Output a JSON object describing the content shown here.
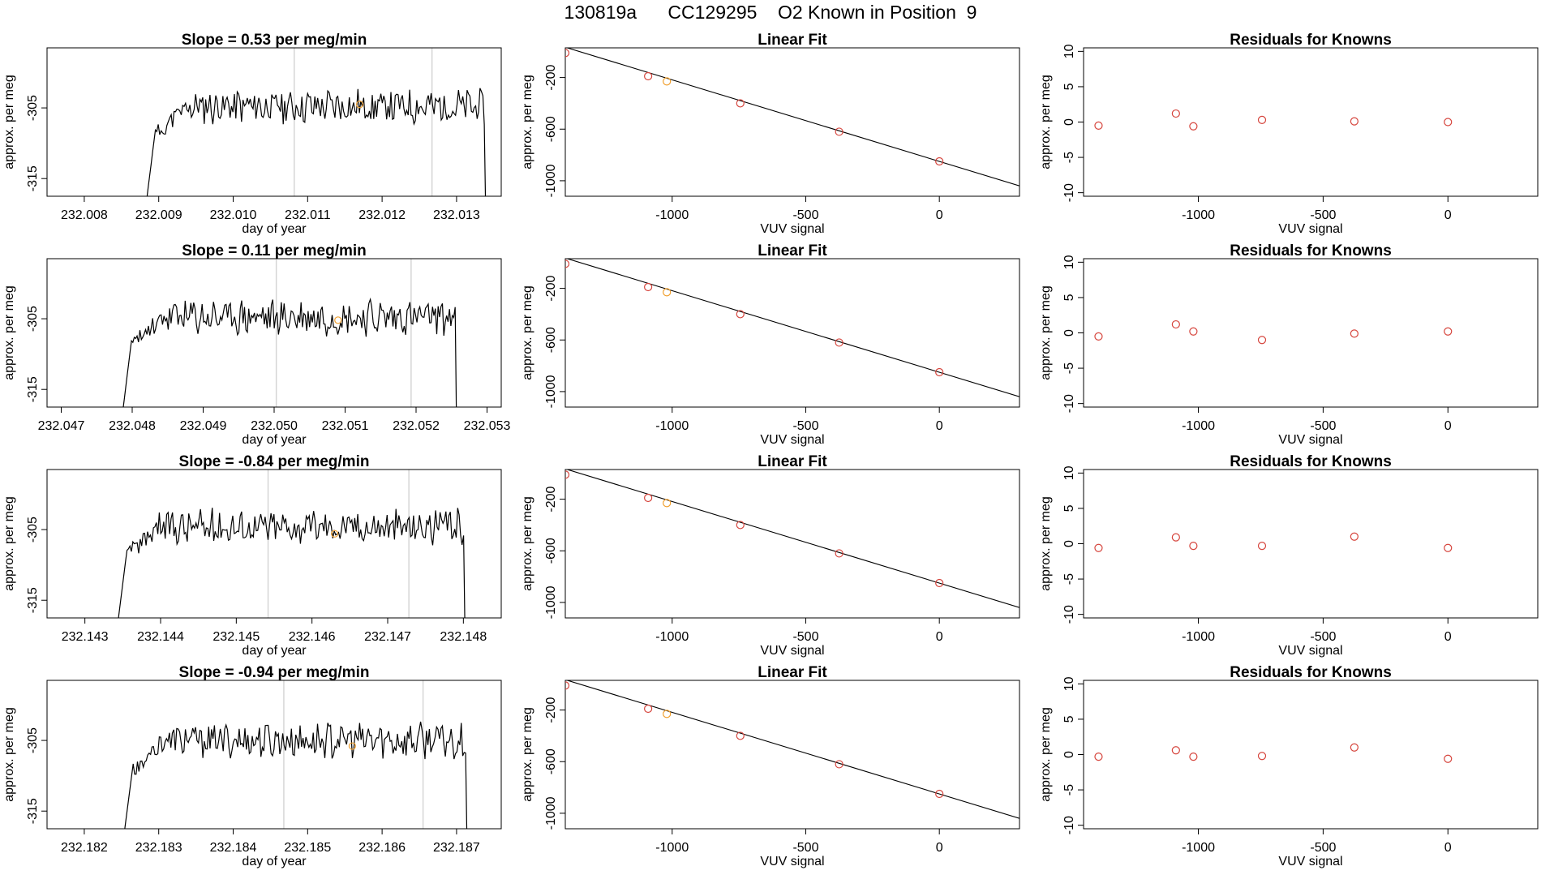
{
  "title": "130819a      CC129295    O2 Known in Position  9",
  "colors": {
    "frame": "#000000",
    "line": "#000000",
    "vline": "#d3d3d3",
    "point": "#d6453d",
    "highlight": "#f0a030"
  },
  "chart_data": [
    {
      "type": "line",
      "title": "Slope =  0.53  per meg/min",
      "xlabel": "day of year",
      "ylabel": "approx. per meg",
      "xlim": [
        232.0075,
        232.0136
      ],
      "ylim": [
        -317.5,
        -296.5
      ],
      "xticks": [
        232.008,
        232.009,
        232.01,
        232.011,
        232.012,
        232.013
      ],
      "xtick_labels": [
        "232.008",
        "232.009",
        "232.010",
        "232.011",
        "232.012",
        "232.013"
      ],
      "yticks": [
        -305,
        -315
      ],
      "ytick_labels": [
        "-305",
        "-315"
      ],
      "vlines": [
        232.01082,
        232.01267
      ],
      "start": 232.00882,
      "end": 232.01345,
      "level": -304.8,
      "amplitude": 2.2,
      "highlight_point": {
        "x": 232.0117,
        "y": -304.5
      },
      "seed": 11
    },
    {
      "type": "scatter",
      "title": "Linear Fit",
      "xlabel": "VUV signal",
      "ylabel": "approx. per meg",
      "xlim": [
        -1400,
        300
      ],
      "ylim": [
        -1120,
        30
      ],
      "xticks": [
        -1000,
        -500,
        0
      ],
      "xtick_labels": [
        "-1000",
        "-500",
        "0"
      ],
      "yticks": [
        -200,
        -600,
        -1000
      ],
      "ytick_labels": [
        "-200",
        "-600",
        "-1000"
      ],
      "x": [
        -1400,
        -1090,
        -1020,
        -745,
        -375,
        0
      ],
      "y": [
        -10,
        -190,
        -230,
        -400,
        -620,
        -850
      ],
      "highlight_index": 2,
      "fit": {
        "slope": 0.632,
        "intercept": -850
      }
    },
    {
      "type": "scatter",
      "title": "Residuals for Knowns",
      "xlabel": "VUV signal",
      "ylabel": "approx. per meg",
      "xlim": [
        -1460,
        360
      ],
      "ylim": [
        -10.5,
        10.5
      ],
      "xticks": [
        -1000,
        -500,
        0
      ],
      "xtick_labels": [
        "-1000",
        "-500",
        "0"
      ],
      "yticks": [
        10,
        5,
        0,
        -5,
        -10
      ],
      "ytick_labels": [
        "10",
        "5",
        "0",
        "-5",
        "-10"
      ],
      "x": [
        -1400,
        -1090,
        -1020,
        -745,
        -375,
        0
      ],
      "y": [
        -0.5,
        1.2,
        -0.6,
        0.3,
        0.1,
        0.0
      ]
    },
    {
      "type": "line",
      "title": "Slope =  0.11  per meg/min",
      "xlabel": "day of year",
      "ylabel": "approx. per meg",
      "xlim": [
        232.0468,
        232.0532
      ],
      "ylim": [
        -317.5,
        -296.5
      ],
      "xticks": [
        232.047,
        232.048,
        232.049,
        232.05,
        232.051,
        232.052,
        232.053
      ],
      "xtick_labels": [
        "232.047",
        "232.048",
        "232.049",
        "232.050",
        "232.051",
        "232.052",
        "232.053"
      ],
      "yticks": [
        -305,
        -315
      ],
      "ytick_labels": [
        "-305",
        "-315"
      ],
      "vlines": [
        232.05003,
        232.05193
      ],
      "start": 232.04785,
      "end": 232.05263,
      "level": -304.8,
      "amplitude": 2.2,
      "highlight_point": {
        "x": 232.0509,
        "y": -305.2
      },
      "seed": 23
    },
    {
      "type": "scatter",
      "title": "Linear Fit",
      "xlabel": "VUV signal",
      "ylabel": "approx. per meg",
      "xlim": [
        -1400,
        300
      ],
      "ylim": [
        -1120,
        30
      ],
      "xticks": [
        -1000,
        -500,
        0
      ],
      "xtick_labels": [
        "-1000",
        "-500",
        "0"
      ],
      "yticks": [
        -200,
        -600,
        -1000
      ],
      "ytick_labels": [
        "-200",
        "-600",
        "-1000"
      ],
      "x": [
        -1400,
        -1090,
        -1020,
        -745,
        -375,
        0
      ],
      "y": [
        -10,
        -190,
        -230,
        -400,
        -620,
        -850
      ],
      "highlight_index": 2,
      "fit": {
        "slope": 0.632,
        "intercept": -850
      }
    },
    {
      "type": "scatter",
      "title": "Residuals for Knowns",
      "xlabel": "VUV signal",
      "ylabel": "approx. per meg",
      "xlim": [
        -1460,
        360
      ],
      "ylim": [
        -10.5,
        10.5
      ],
      "xticks": [
        -1000,
        -500,
        0
      ],
      "xtick_labels": [
        "-1000",
        "-500",
        "0"
      ],
      "yticks": [
        10,
        5,
        0,
        -5,
        -10
      ],
      "ytick_labels": [
        "10",
        "5",
        "0",
        "-5",
        "-10"
      ],
      "x": [
        -1400,
        -1090,
        -1020,
        -745,
        -375,
        0
      ],
      "y": [
        -0.5,
        1.2,
        0.2,
        -1.0,
        -0.1,
        0.2
      ]
    },
    {
      "type": "line",
      "title": "Slope =  -0.84  per meg/min",
      "xlabel": "day of year",
      "ylabel": "approx. per meg",
      "xlim": [
        232.1425,
        232.1485
      ],
      "ylim": [
        -317.5,
        -296.5
      ],
      "xticks": [
        232.143,
        232.144,
        232.145,
        232.146,
        232.147,
        232.148
      ],
      "xtick_labels": [
        "232.143",
        "232.144",
        "232.145",
        "232.146",
        "232.147",
        "232.148"
      ],
      "yticks": [
        -305,
        -315
      ],
      "ytick_labels": [
        "-305",
        "-315"
      ],
      "vlines": [
        232.14542,
        232.14728
      ],
      "start": 232.14342,
      "end": 232.14808,
      "level": -304.6,
      "amplitude": 2.2,
      "highlight_point": {
        "x": 232.1463,
        "y": -305.6
      },
      "seed": 37
    },
    {
      "type": "scatter",
      "title": "Linear Fit",
      "xlabel": "VUV signal",
      "ylabel": "approx. per meg",
      "xlim": [
        -1400,
        300
      ],
      "ylim": [
        -1120,
        30
      ],
      "xticks": [
        -1000,
        -500,
        0
      ],
      "xtick_labels": [
        "-1000",
        "-500",
        "0"
      ],
      "yticks": [
        -200,
        -600,
        -1000
      ],
      "ytick_labels": [
        "-200",
        "-600",
        "-1000"
      ],
      "x": [
        -1400,
        -1090,
        -1020,
        -745,
        -375,
        0
      ],
      "y": [
        -10,
        -190,
        -230,
        -400,
        -620,
        -850
      ],
      "highlight_index": 2,
      "fit": {
        "slope": 0.632,
        "intercept": -850
      }
    },
    {
      "type": "scatter",
      "title": "Residuals for Knowns",
      "xlabel": "VUV signal",
      "ylabel": "approx. per meg",
      "xlim": [
        -1460,
        360
      ],
      "ylim": [
        -10.5,
        10.5
      ],
      "xticks": [
        -1000,
        -500,
        0
      ],
      "xtick_labels": [
        "-1000",
        "-500",
        "0"
      ],
      "yticks": [
        10,
        5,
        0,
        -5,
        -10
      ],
      "ytick_labels": [
        "10",
        "5",
        "0",
        "-5",
        "-10"
      ],
      "x": [
        -1400,
        -1090,
        -1020,
        -745,
        -375,
        0
      ],
      "y": [
        -0.6,
        0.9,
        -0.3,
        -0.3,
        1.0,
        -0.6
      ]
    },
    {
      "type": "line",
      "title": "Slope =  -0.94  per meg/min",
      "xlabel": "day of year",
      "ylabel": "approx. per meg",
      "xlim": [
        232.1815,
        232.1876
      ],
      "ylim": [
        -317.5,
        -296.5
      ],
      "xticks": [
        232.182,
        232.183,
        232.184,
        232.185,
        232.186,
        232.187
      ],
      "xtick_labels": [
        "232.182",
        "232.183",
        "232.184",
        "232.185",
        "232.186",
        "232.187"
      ],
      "yticks": [
        -305,
        -315
      ],
      "ytick_labels": [
        "-305",
        "-315"
      ],
      "vlines": [
        232.18468,
        232.18655
      ],
      "start": 232.18252,
      "end": 232.1872,
      "level": -305.0,
      "amplitude": 2.2,
      "highlight_point": {
        "x": 232.1856,
        "y": -305.8
      },
      "seed": 53
    },
    {
      "type": "scatter",
      "title": "Linear Fit",
      "xlabel": "VUV signal",
      "ylabel": "approx. per meg",
      "xlim": [
        -1400,
        300
      ],
      "ylim": [
        -1120,
        30
      ],
      "xticks": [
        -1000,
        -500,
        0
      ],
      "xtick_labels": [
        "-1000",
        "-500",
        "0"
      ],
      "yticks": [
        -200,
        -600,
        -1000
      ],
      "ytick_labels": [
        "-200",
        "-600",
        "-1000"
      ],
      "x": [
        -1400,
        -1090,
        -1020,
        -745,
        -375,
        0
      ],
      "y": [
        -10,
        -190,
        -230,
        -400,
        -620,
        -850
      ],
      "highlight_index": 2,
      "fit": {
        "slope": 0.632,
        "intercept": -850
      }
    },
    {
      "type": "scatter",
      "title": "Residuals for Knowns",
      "xlabel": "VUV signal",
      "ylabel": "approx. per meg",
      "xlim": [
        -1460,
        360
      ],
      "ylim": [
        -10.5,
        10.5
      ],
      "xticks": [
        -1000,
        -500,
        0
      ],
      "xtick_labels": [
        "-1000",
        "-500",
        "0"
      ],
      "yticks": [
        10,
        5,
        0,
        -5,
        -10
      ],
      "ytick_labels": [
        "10",
        "5",
        "0",
        "-5",
        "-10"
      ],
      "x": [
        -1400,
        -1090,
        -1020,
        -745,
        -375,
        0
      ],
      "y": [
        -0.3,
        0.6,
        -0.3,
        -0.2,
        1.0,
        -0.6
      ]
    }
  ]
}
